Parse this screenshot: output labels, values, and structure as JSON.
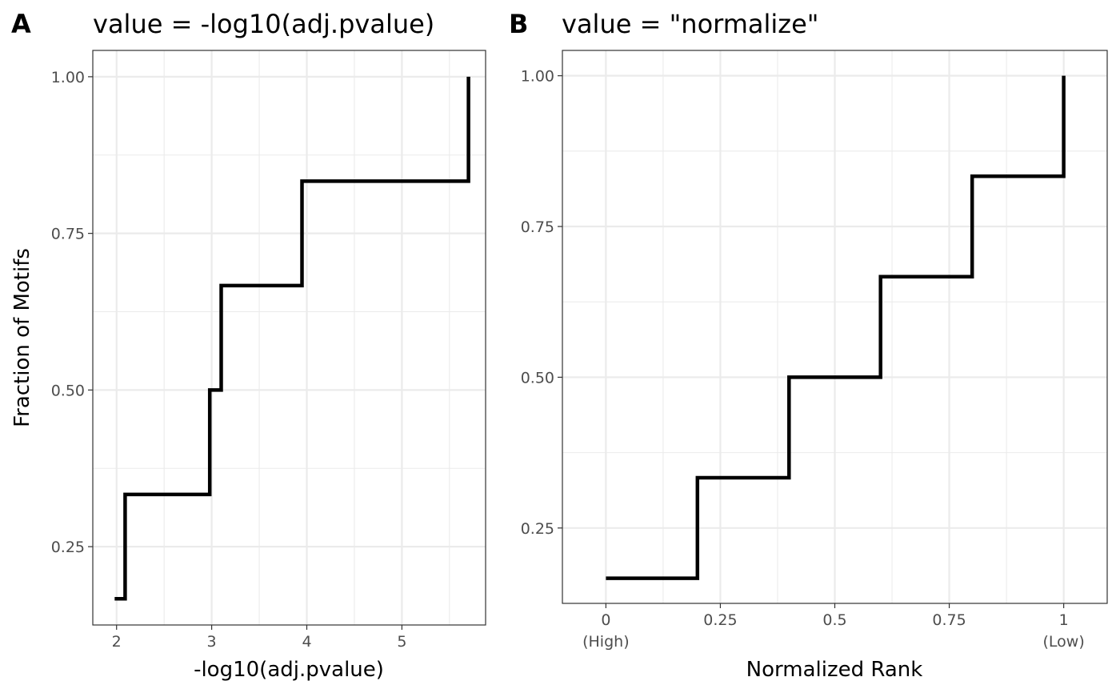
{
  "chart_data": [
    {
      "type": "line",
      "step": true,
      "tag": "A",
      "title": "value = -log10(adj.pvalue)",
      "xlabel": "-log10(adj.pvalue)",
      "ylabel": "Fraction of Motifs",
      "xlim": [
        1.75,
        5.88
      ],
      "ylim": [
        0.125,
        1.042
      ],
      "xticks": [
        {
          "value": 2,
          "label": "2"
        },
        {
          "value": 3,
          "label": "3"
        },
        {
          "value": 4,
          "label": "4"
        },
        {
          "value": 5,
          "label": "5"
        }
      ],
      "yticks": [
        {
          "value": 0.25,
          "label": "0.25"
        },
        {
          "value": 0.5,
          "label": "0.50"
        },
        {
          "value": 0.75,
          "label": "0.75"
        },
        {
          "value": 1.0,
          "label": "1.00"
        }
      ],
      "grid": true,
      "series": [
        {
          "x": [
            1.98,
            2.09,
            2.09,
            2.98,
            2.98,
            3.1,
            3.1,
            3.95,
            3.95,
            5.7,
            5.7
          ],
          "y": [
            0.1667,
            0.1667,
            0.3333,
            0.3333,
            0.5,
            0.5,
            0.6667,
            0.6667,
            0.8333,
            0.8333,
            1.0
          ]
        }
      ]
    },
    {
      "type": "line",
      "step": true,
      "tag": "B",
      "title": "value = \"normalize\"",
      "xlabel": "Normalized Rank",
      "ylabel": "",
      "xlim": [
        -0.095,
        1.095
      ],
      "ylim": [
        0.125,
        1.042
      ],
      "xticks": [
        {
          "value": 0,
          "label": "0",
          "sublabel": "(High)"
        },
        {
          "value": 0.25,
          "label": "0.25"
        },
        {
          "value": 0.5,
          "label": "0.5"
        },
        {
          "value": 0.75,
          "label": "0.75"
        },
        {
          "value": 1,
          "label": "1",
          "sublabel": "(Low)"
        }
      ],
      "yticks": [
        {
          "value": 0.25,
          "label": "0.25"
        },
        {
          "value": 0.5,
          "label": "0.50"
        },
        {
          "value": 0.75,
          "label": "0.75"
        },
        {
          "value": 1.0,
          "label": "1.00"
        }
      ],
      "grid": true,
      "series": [
        {
          "x": [
            0,
            0.2,
            0.2,
            0.4,
            0.4,
            0.6,
            0.6,
            0.8,
            0.8,
            1.0,
            1.0
          ],
          "y": [
            0.1667,
            0.1667,
            0.3333,
            0.3333,
            0.5,
            0.5,
            0.6667,
            0.6667,
            0.8333,
            0.8333,
            1.0
          ]
        }
      ]
    }
  ]
}
